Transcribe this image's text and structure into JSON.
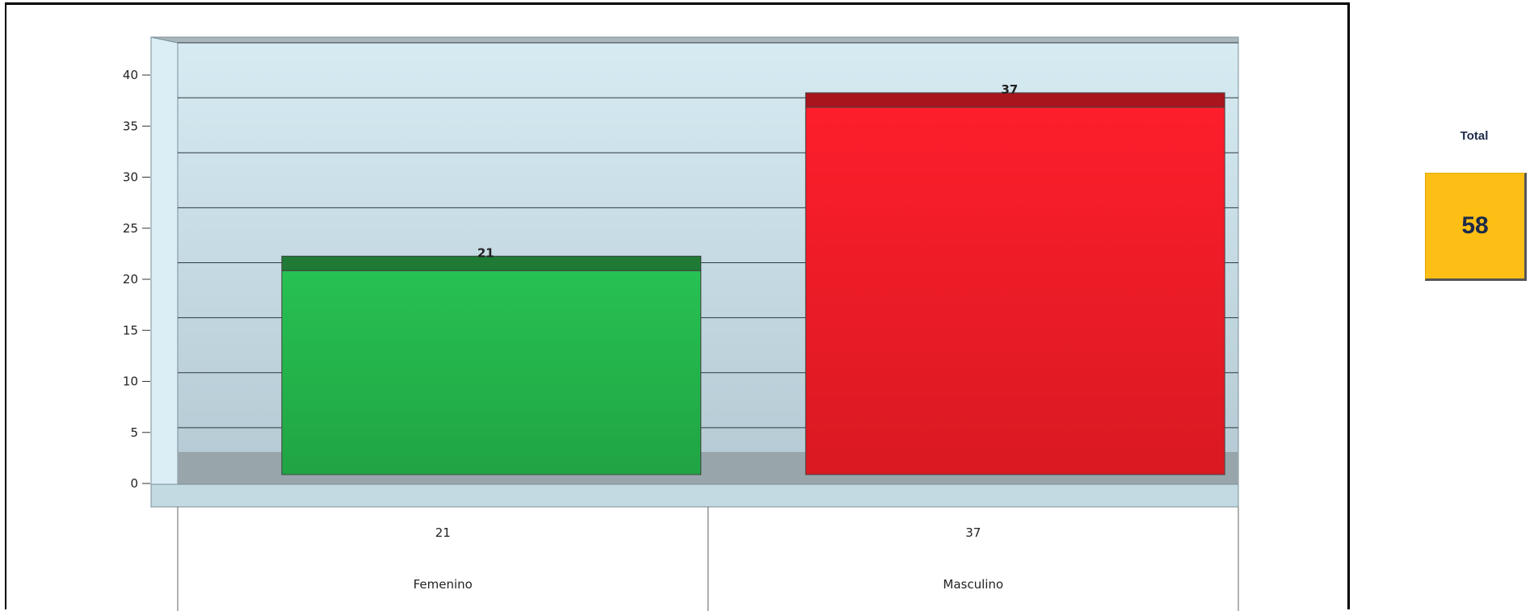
{
  "chart_data": {
    "type": "bar",
    "categories": [
      "Femenino",
      "Masculino"
    ],
    "values": [
      21,
      37
    ],
    "data_labels": [
      "21",
      "37"
    ],
    "table_values": [
      "21",
      "37"
    ],
    "ylim": [
      0,
      40
    ],
    "yticks": [
      0,
      5,
      10,
      15,
      20,
      25,
      30,
      35,
      40
    ],
    "colors": [
      "#25b84c",
      "#ee1c25"
    ],
    "grid": true
  },
  "total": {
    "label": "Total",
    "value": "58",
    "color": "#fdbf16"
  }
}
